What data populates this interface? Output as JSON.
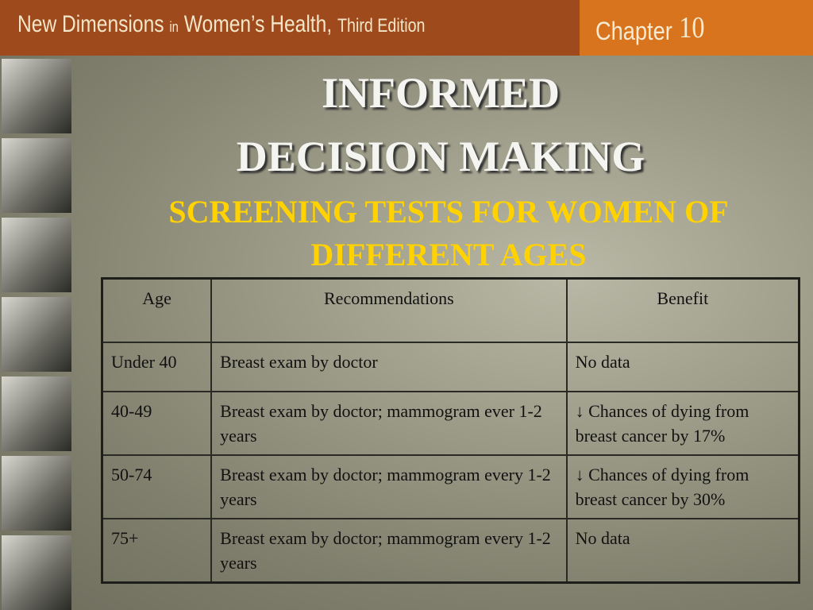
{
  "header": {
    "book_title_1": "New Dimensions",
    "book_title_in": "in",
    "book_title_2": "Women’s Health,",
    "book_title_edition": "Third Edition",
    "chapter_label": "Chapter",
    "chapter_number": "10"
  },
  "slide": {
    "title_line1": "INFORMED",
    "title_line2": "DECISION MAKING",
    "subtitle_line1": "SCREENING TESTS FOR WOMEN OF",
    "subtitle_line2": "DIFFERENT AGES"
  },
  "table": {
    "headers": [
      "Age",
      "Recommendations",
      "Benefit"
    ],
    "rows": [
      [
        "Under 40",
        "Breast exam by doctor",
        "No data"
      ],
      [
        "40-49",
        "Breast exam by doctor; mammogram ever 1-2 years",
        "↓ Chances of dying from breast cancer by 17%"
      ],
      [
        "50-74",
        "Breast exam by doctor; mammogram every 1-2 years",
        "↓ Chances of dying from breast cancer by 30%"
      ],
      [
        "75+",
        "Breast exam by doctor; mammogram every 1-2 years",
        "No data"
      ]
    ]
  },
  "colors": {
    "header_dark": "#9e4a1c",
    "header_orange": "#d8731e",
    "subtitle_yellow": "#ffd200"
  }
}
